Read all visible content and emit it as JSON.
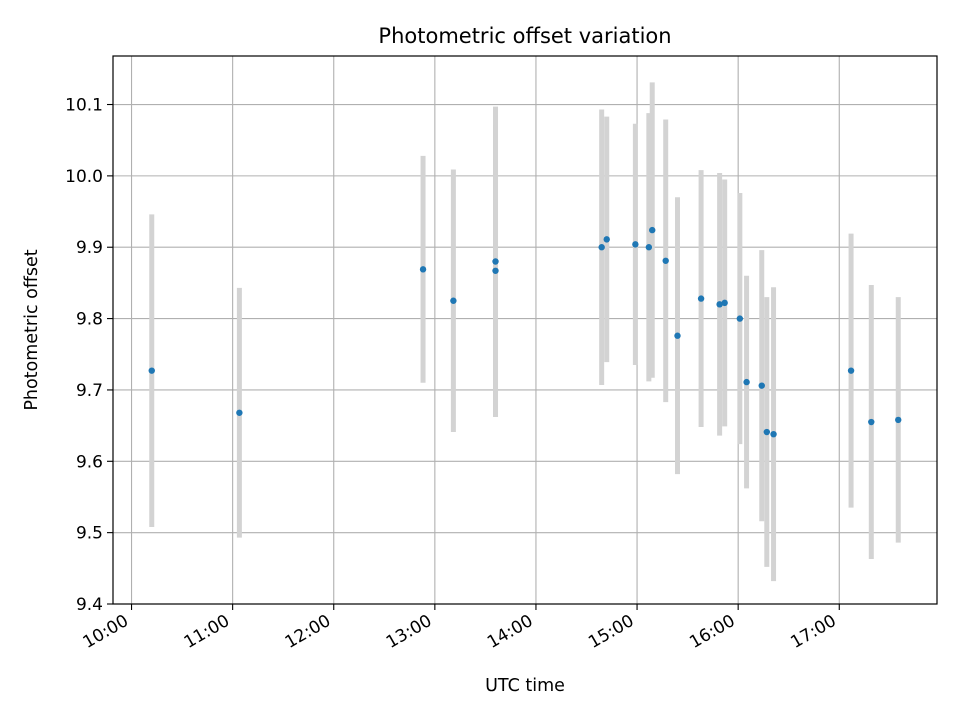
{
  "chart_data": {
    "type": "scatter",
    "title": "Photometric offset variation",
    "xlabel": "UTC time",
    "ylabel": "Photometric offset",
    "x_axis_kind": "time",
    "xlim": [
      "09:49",
      "17:58"
    ],
    "ylim": [
      9.4,
      10.168
    ],
    "grid": true,
    "x_ticks": [
      "10:00",
      "11:00",
      "12:00",
      "13:00",
      "14:00",
      "15:00",
      "16:00",
      "17:00"
    ],
    "y_ticks": [
      "9.4",
      "9.5",
      "9.6",
      "9.7",
      "9.8",
      "9.9",
      "10.0",
      "10.1"
    ],
    "colors": {
      "point": "#1f77b4",
      "errorbar": "#d3d3d3",
      "grid": "#b0b0b0"
    },
    "points": [
      {
        "x": "10:12",
        "y": 9.727,
        "yerr": 0.219
      },
      {
        "x": "11:04",
        "y": 9.668,
        "yerr": 0.175
      },
      {
        "x": "12:53",
        "y": 9.869,
        "yerr": 0.159
      },
      {
        "x": "13:11",
        "y": 9.825,
        "yerr": 0.184
      },
      {
        "x": "13:36",
        "y": 9.867,
        "yerr": 0.205
      },
      {
        "x": "13:36",
        "y": 9.88,
        "yerr": 0.217
      },
      {
        "x": "14:39",
        "y": 9.9,
        "yerr": 0.193
      },
      {
        "x": "14:42",
        "y": 9.911,
        "yerr": 0.172
      },
      {
        "x": "14:59",
        "y": 9.904,
        "yerr": 0.169
      },
      {
        "x": "15:07",
        "y": 9.9,
        "yerr": 0.188
      },
      {
        "x": "15:09",
        "y": 9.924,
        "yerr": 0.207
      },
      {
        "x": "15:17",
        "y": 9.881,
        "yerr": 0.198
      },
      {
        "x": "15:24",
        "y": 9.776,
        "yerr": 0.194
      },
      {
        "x": "15:38",
        "y": 9.828,
        "yerr": 0.18
      },
      {
        "x": "15:49",
        "y": 9.82,
        "yerr": 0.184
      },
      {
        "x": "15:52",
        "y": 9.822,
        "yerr": 0.173
      },
      {
        "x": "16:01",
        "y": 9.8,
        "yerr": 0.176
      },
      {
        "x": "16:05",
        "y": 9.711,
        "yerr": 0.149
      },
      {
        "x": "16:14",
        "y": 9.706,
        "yerr": 0.19
      },
      {
        "x": "16:17",
        "y": 9.641,
        "yerr": 0.189
      },
      {
        "x": "16:21",
        "y": 9.638,
        "yerr": 0.206
      },
      {
        "x": "17:07",
        "y": 9.727,
        "yerr": 0.192
      },
      {
        "x": "17:19",
        "y": 9.655,
        "yerr": 0.192
      },
      {
        "x": "17:35",
        "y": 9.658,
        "yerr": 0.172
      }
    ]
  }
}
